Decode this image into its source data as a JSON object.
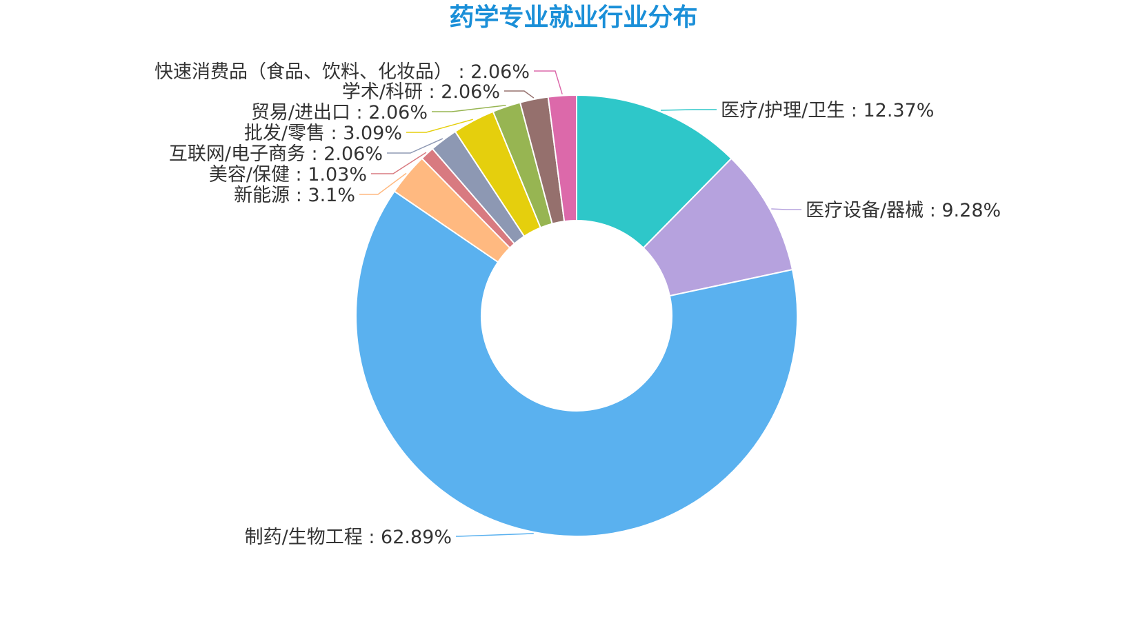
{
  "chart_data": {
    "type": "pie",
    "variant": "donut",
    "title": "药学专业就业行业分布",
    "title_color": "#1a8fd8",
    "label_color": "#333333",
    "slices": [
      {
        "label": "医疗/护理/卫生",
        "value": 12.37,
        "display": "12.37%",
        "color": "#2ec7c9"
      },
      {
        "label": "医疗设备/器械",
        "value": 9.28,
        "display": "9.28%",
        "color": "#b6a2de"
      },
      {
        "label": "制药/生物工程",
        "value": 62.89,
        "display": "62.89%",
        "color": "#5ab1ef"
      },
      {
        "label": "新能源",
        "value": 3.1,
        "display": "3.1%",
        "color": "#ffb980"
      },
      {
        "label": "美容/保健",
        "value": 1.03,
        "display": "1.03%",
        "color": "#d87a80"
      },
      {
        "label": "互联网/电子商务",
        "value": 2.06,
        "display": "2.06%",
        "color": "#8d98b3"
      },
      {
        "label": "批发/零售",
        "value": 3.09,
        "display": "3.09%",
        "color": "#e5cf0d"
      },
      {
        "label": "贸易/进出口",
        "value": 2.06,
        "display": "2.06%",
        "color": "#97b552"
      },
      {
        "label": "学术/科研",
        "value": 2.06,
        "display": "2.06%",
        "color": "#95706d"
      },
      {
        "label": "快速消费品（食品、饮料、化妆品）",
        "value": 2.06,
        "display": "2.06%",
        "color": "#dc69aa"
      }
    ],
    "legend": "none"
  }
}
